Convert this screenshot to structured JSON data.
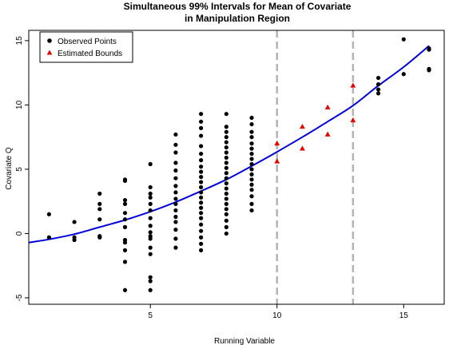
{
  "chart_data": {
    "type": "scatter",
    "title_line1": "Simultaneous 99% Intervals for Mean of Covariate",
    "title_line2": "in Manipulation Region",
    "xlabel": "Running Variable",
    "ylabel": "Covariate Q",
    "xlim": [
      0.2,
      16.6
    ],
    "ylim": [
      -5.5,
      15.8
    ],
    "xticks": [
      5,
      10,
      15
    ],
    "yticks": [
      -5,
      0,
      5,
      10,
      15
    ],
    "grid": false,
    "legend_position": "top-left",
    "colors": {
      "observed": "#000000",
      "bounds": "#e60000",
      "curve": "#0000dd",
      "vline": "#b3b3b3"
    },
    "vertical_lines": [
      10,
      13
    ],
    "series": [
      {
        "name": "Observed Points",
        "marker": "circle",
        "points": [
          [
            1,
            1.5
          ],
          [
            1,
            -0.3
          ],
          [
            2,
            0.9
          ],
          [
            2,
            -0.3
          ],
          [
            2,
            -0.5
          ],
          [
            3,
            3.1
          ],
          [
            3,
            2.3
          ],
          [
            3,
            1.9
          ],
          [
            3,
            1.1
          ],
          [
            3,
            -0.2
          ],
          [
            3,
            -0.3
          ],
          [
            4,
            4.2
          ],
          [
            4,
            4.1
          ],
          [
            4,
            2.6
          ],
          [
            4,
            2.3
          ],
          [
            4,
            1.6
          ],
          [
            4,
            1.1
          ],
          [
            4,
            0.5
          ],
          [
            4,
            -0.5
          ],
          [
            4,
            -0.7
          ],
          [
            4,
            -1.3
          ],
          [
            4,
            -2.2
          ],
          [
            4,
            -4.4
          ],
          [
            5,
            5.4
          ],
          [
            5,
            3.6
          ],
          [
            5,
            3.1
          ],
          [
            5,
            2.8
          ],
          [
            5,
            2.3
          ],
          [
            5,
            1.8
          ],
          [
            5,
            1.2
          ],
          [
            5,
            0.6
          ],
          [
            5,
            0.1
          ],
          [
            5,
            -0.2
          ],
          [
            5,
            -0.4
          ],
          [
            5,
            -1.1
          ],
          [
            5,
            -1.6
          ],
          [
            5,
            -3.4
          ],
          [
            5,
            -3.7
          ],
          [
            5,
            -4.4
          ],
          [
            6,
            7.7
          ],
          [
            6,
            6.9
          ],
          [
            6,
            6.3
          ],
          [
            6,
            5.5
          ],
          [
            6,
            4.9
          ],
          [
            6,
            4.3
          ],
          [
            6,
            3.7
          ],
          [
            6,
            3.2
          ],
          [
            6,
            2.7
          ],
          [
            6,
            2.3
          ],
          [
            6,
            1.8
          ],
          [
            6,
            1.3
          ],
          [
            6,
            0.9
          ],
          [
            6,
            0.3
          ],
          [
            6,
            -0.4
          ],
          [
            6,
            -1.1
          ],
          [
            7,
            9.3
          ],
          [
            7,
            8.7
          ],
          [
            7,
            8.2
          ],
          [
            7,
            7.6
          ],
          [
            7,
            6.8
          ],
          [
            7,
            6.2
          ],
          [
            7,
            5.7
          ],
          [
            7,
            5.2
          ],
          [
            7,
            4.8
          ],
          [
            7,
            4.4
          ],
          [
            7,
            4.0
          ],
          [
            7,
            3.6
          ],
          [
            7,
            3.2
          ],
          [
            7,
            2.8
          ],
          [
            7,
            2.4
          ],
          [
            7,
            2.0
          ],
          [
            7,
            1.6
          ],
          [
            7,
            1.2
          ],
          [
            7,
            0.7
          ],
          [
            7,
            0.2
          ],
          [
            7,
            -0.3
          ],
          [
            7,
            -0.8
          ],
          [
            7,
            -1.3
          ],
          [
            8,
            9.3
          ],
          [
            8,
            8.3
          ],
          [
            8,
            7.9
          ],
          [
            8,
            7.5
          ],
          [
            8,
            7.1
          ],
          [
            8,
            6.7
          ],
          [
            8,
            6.3
          ],
          [
            8,
            5.9
          ],
          [
            8,
            5.5
          ],
          [
            8,
            5.1
          ],
          [
            8,
            4.7
          ],
          [
            8,
            4.3
          ],
          [
            8,
            3.9
          ],
          [
            8,
            3.5
          ],
          [
            8,
            3.1
          ],
          [
            8,
            2.7
          ],
          [
            8,
            2.3
          ],
          [
            8,
            1.9
          ],
          [
            8,
            1.5
          ],
          [
            8,
            1.0
          ],
          [
            8,
            0.5
          ],
          [
            8,
            0.0
          ],
          [
            9,
            9.0
          ],
          [
            9,
            8.5
          ],
          [
            9,
            7.9
          ],
          [
            9,
            7.5
          ],
          [
            9,
            7.0
          ],
          [
            9,
            6.6
          ],
          [
            9,
            6.2
          ],
          [
            9,
            5.8
          ],
          [
            9,
            5.4
          ],
          [
            9,
            5.0
          ],
          [
            9,
            4.6
          ],
          [
            9,
            4.2
          ],
          [
            9,
            3.8
          ],
          [
            9,
            3.4
          ],
          [
            9,
            2.9
          ],
          [
            9,
            2.3
          ],
          [
            9,
            1.8
          ],
          [
            14,
            12.1
          ],
          [
            14,
            11.6
          ],
          [
            14,
            11.2
          ],
          [
            14,
            10.9
          ],
          [
            15,
            15.1
          ],
          [
            15,
            12.4
          ],
          [
            16,
            14.4
          ],
          [
            16,
            14.3
          ],
          [
            16,
            12.8
          ],
          [
            16,
            12.7
          ]
        ]
      },
      {
        "name": "Estimated Bounds",
        "marker": "triangle",
        "points": [
          [
            10,
            7.0
          ],
          [
            10,
            5.6
          ],
          [
            11,
            8.3
          ],
          [
            11,
            6.6
          ],
          [
            12,
            9.8
          ],
          [
            12,
            7.7
          ],
          [
            13,
            11.5
          ],
          [
            13,
            8.8
          ]
        ]
      }
    ],
    "fit_curve": {
      "x": [
        0.2,
        1,
        2,
        3,
        4,
        5,
        6,
        7,
        8,
        9,
        10,
        11,
        12,
        13,
        14,
        15,
        16
      ],
      "y": [
        -0.7,
        -0.45,
        -0.05,
        0.5,
        1.05,
        1.7,
        2.45,
        3.3,
        4.2,
        5.25,
        6.35,
        7.5,
        8.7,
        9.95,
        11.5,
        12.95,
        14.6
      ]
    }
  }
}
